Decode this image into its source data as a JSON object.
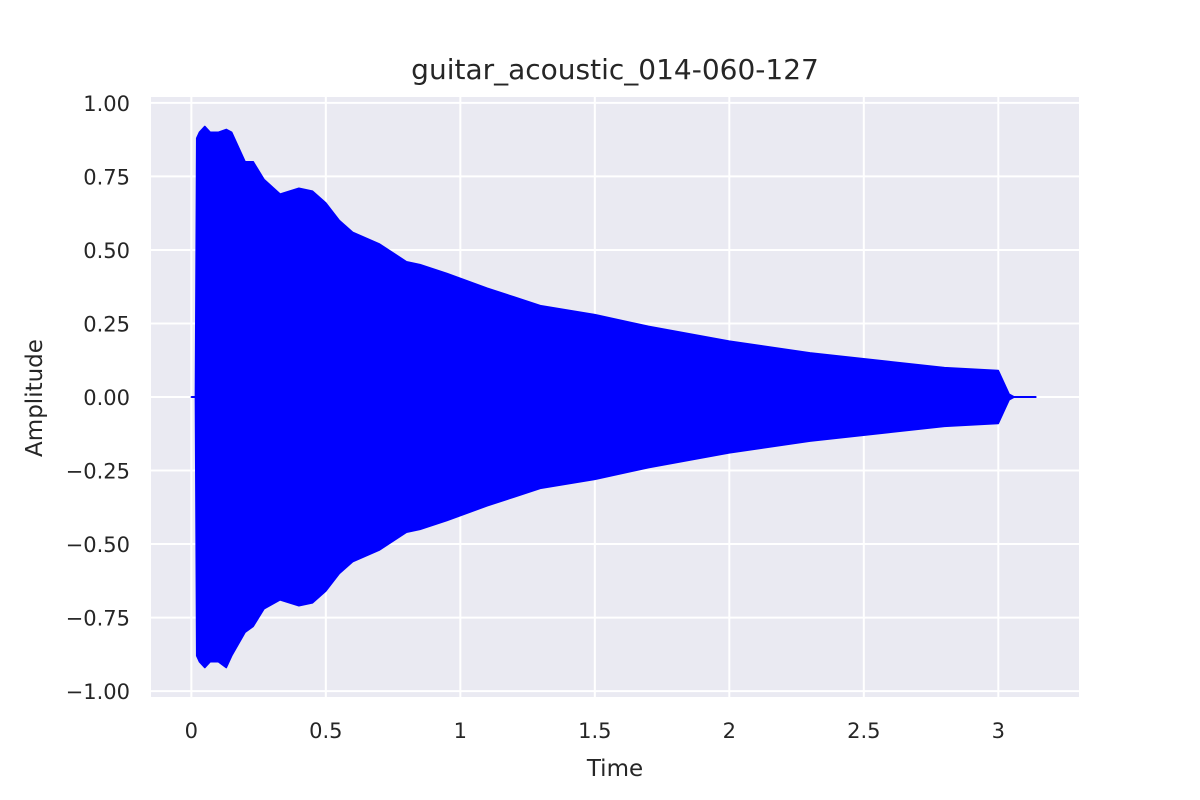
{
  "chart_data": {
    "type": "area",
    "title": "guitar_acoustic_014-060-127",
    "xlabel": "Time",
    "ylabel": "Amplitude",
    "xlim": [
      -0.15,
      3.3
    ],
    "ylim": [
      -1.02,
      1.02
    ],
    "grid": true,
    "background_color": "#eaeaf2",
    "grid_color": "#ffffff",
    "xticks": [
      0,
      0.5,
      1,
      1.5,
      2,
      2.5,
      3
    ],
    "xtick_labels": [
      "0",
      "0.5",
      "1",
      "1.5",
      "2",
      "2.5",
      "3"
    ],
    "yticks": [
      -1.0,
      -0.75,
      -0.5,
      -0.25,
      0.0,
      0.25,
      0.5,
      0.75,
      1.0
    ],
    "ytick_labels": [
      "−1.00",
      "−0.75",
      "−0.50",
      "−0.25",
      "0.00",
      "0.25",
      "0.50",
      "0.75",
      "1.00"
    ],
    "series": [
      {
        "color": "#0000ff",
        "envelope": {
          "x": [
            0.0,
            0.015,
            0.02,
            0.03,
            0.05,
            0.07,
            0.1,
            0.13,
            0.15,
            0.2,
            0.23,
            0.27,
            0.33,
            0.4,
            0.45,
            0.5,
            0.55,
            0.6,
            0.7,
            0.8,
            0.85,
            0.95,
            1.1,
            1.2,
            1.3,
            1.5,
            1.7,
            2.0,
            2.3,
            2.6,
            2.8,
            3.0,
            3.02,
            3.04,
            3.06,
            3.14
          ],
          "upper": [
            0.0,
            0.0,
            0.88,
            0.9,
            0.92,
            0.9,
            0.9,
            0.91,
            0.9,
            0.8,
            0.8,
            0.74,
            0.69,
            0.71,
            0.7,
            0.66,
            0.6,
            0.56,
            0.52,
            0.46,
            0.45,
            0.42,
            0.37,
            0.34,
            0.31,
            0.28,
            0.24,
            0.19,
            0.15,
            0.12,
            0.1,
            0.09,
            0.05,
            0.01,
            0.0,
            0.0
          ],
          "lower": [
            0.0,
            0.0,
            -0.88,
            -0.9,
            -0.92,
            -0.9,
            -0.9,
            -0.92,
            -0.88,
            -0.8,
            -0.78,
            -0.72,
            -0.69,
            -0.71,
            -0.7,
            -0.66,
            -0.6,
            -0.56,
            -0.52,
            -0.46,
            -0.45,
            -0.42,
            -0.37,
            -0.34,
            -0.31,
            -0.28,
            -0.24,
            -0.19,
            -0.15,
            -0.12,
            -0.1,
            -0.09,
            -0.05,
            -0.01,
            0.0,
            0.0
          ]
        }
      }
    ]
  }
}
